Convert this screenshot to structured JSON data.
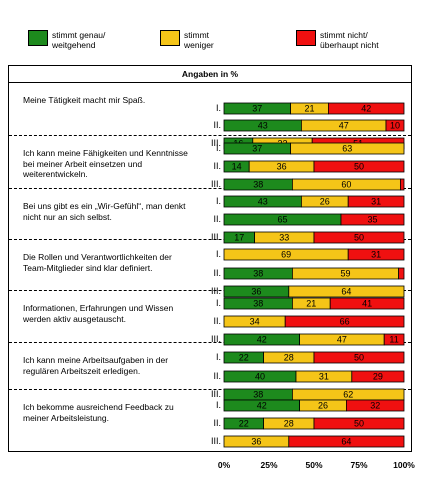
{
  "legend": [
    {
      "label": "stimmt genau/\nweitgehend",
      "color": "#1d8a1d"
    },
    {
      "label": "stimmt\nweniger",
      "color": "#f5c518"
    },
    {
      "label": "stimmt nicht/\nüberhaupt nicht",
      "color": "#f01010"
    }
  ],
  "header": "Angaben in %",
  "row_labels": [
    "I.",
    "II.",
    "III."
  ],
  "x_ticks": [
    "0%",
    "25%",
    "50%",
    "75%",
    "100%"
  ],
  "chart_data": {
    "type": "bar",
    "orientation": "horizontal",
    "stacked": true,
    "xlim": [
      0,
      100
    ],
    "series_names": [
      "stimmt genau/weitgehend",
      "stimmt weniger",
      "stimmt nicht/überhaupt nicht"
    ],
    "colors": [
      "#1d8a1d",
      "#f5c518",
      "#f01010"
    ],
    "groups": [
      {
        "statement": "Meine Tätigkeit macht mir Spaß.",
        "rows": [
          {
            "label": "I.",
            "values": [
              37,
              21,
              42
            ]
          },
          {
            "label": "II.",
            "values": [
              43,
              47,
              10
            ]
          },
          {
            "label": "III.",
            "values": [
              16,
              33,
              51
            ]
          }
        ]
      },
      {
        "statement": "Ich kann meine Fähigkeiten und Kenntnisse bei meiner Arbeit einsetzen und weiterentwickeln.",
        "rows": [
          {
            "label": "I.",
            "values": [
              37,
              63,
              0
            ]
          },
          {
            "label": "II.",
            "values": [
              14,
              36,
              50
            ]
          },
          {
            "label": "III.",
            "values": [
              38,
              60,
              2
            ]
          }
        ]
      },
      {
        "statement": "Bei uns gibt es ein „Wir-Gefühl“, man denkt nicht nur an sich selbst.",
        "rows": [
          {
            "label": "I.",
            "values": [
              43,
              26,
              31
            ]
          },
          {
            "label": "II.",
            "values": [
              65,
              0,
              35
            ]
          },
          {
            "label": "III.",
            "values": [
              17,
              33,
              50
            ]
          }
        ]
      },
      {
        "statement": "Die Rollen und Verantwortlichkeiten der Team-Mitglieder sind klar definiert.",
        "rows": [
          {
            "label": "I.",
            "values": [
              0,
              69,
              31
            ]
          },
          {
            "label": "II.",
            "values": [
              38,
              59,
              3
            ]
          },
          {
            "label": "III.",
            "values": [
              36,
              64,
              0
            ]
          }
        ]
      },
      {
        "statement": "Informationen, Erfahrungen und Wissen werden aktiv ausgetauscht.",
        "rows": [
          {
            "label": "I.",
            "values": [
              38,
              21,
              41
            ]
          },
          {
            "label": "II.",
            "values": [
              0,
              34,
              66
            ]
          },
          {
            "label": "III.",
            "values": [
              42,
              47,
              11
            ]
          }
        ]
      },
      {
        "statement": "Ich kann meine Arbeitsaufgaben in der regulären Arbeitszeit erledigen.",
        "rows": [
          {
            "label": "I.",
            "values": [
              22,
              28,
              50
            ]
          },
          {
            "label": "II.",
            "values": [
              40,
              31,
              29
            ]
          },
          {
            "label": "III.",
            "values": [
              38,
              62,
              0
            ]
          }
        ]
      },
      {
        "statement": "Ich bekomme ausreichend Feedback zu meiner Arbeitsleistung.",
        "rows": [
          {
            "label": "I.",
            "values": [
              42,
              26,
              32
            ]
          },
          {
            "label": "II.",
            "values": [
              22,
              28,
              50
            ]
          },
          {
            "label": "III.",
            "values": [
              0,
              36,
              64
            ]
          }
        ]
      }
    ]
  }
}
